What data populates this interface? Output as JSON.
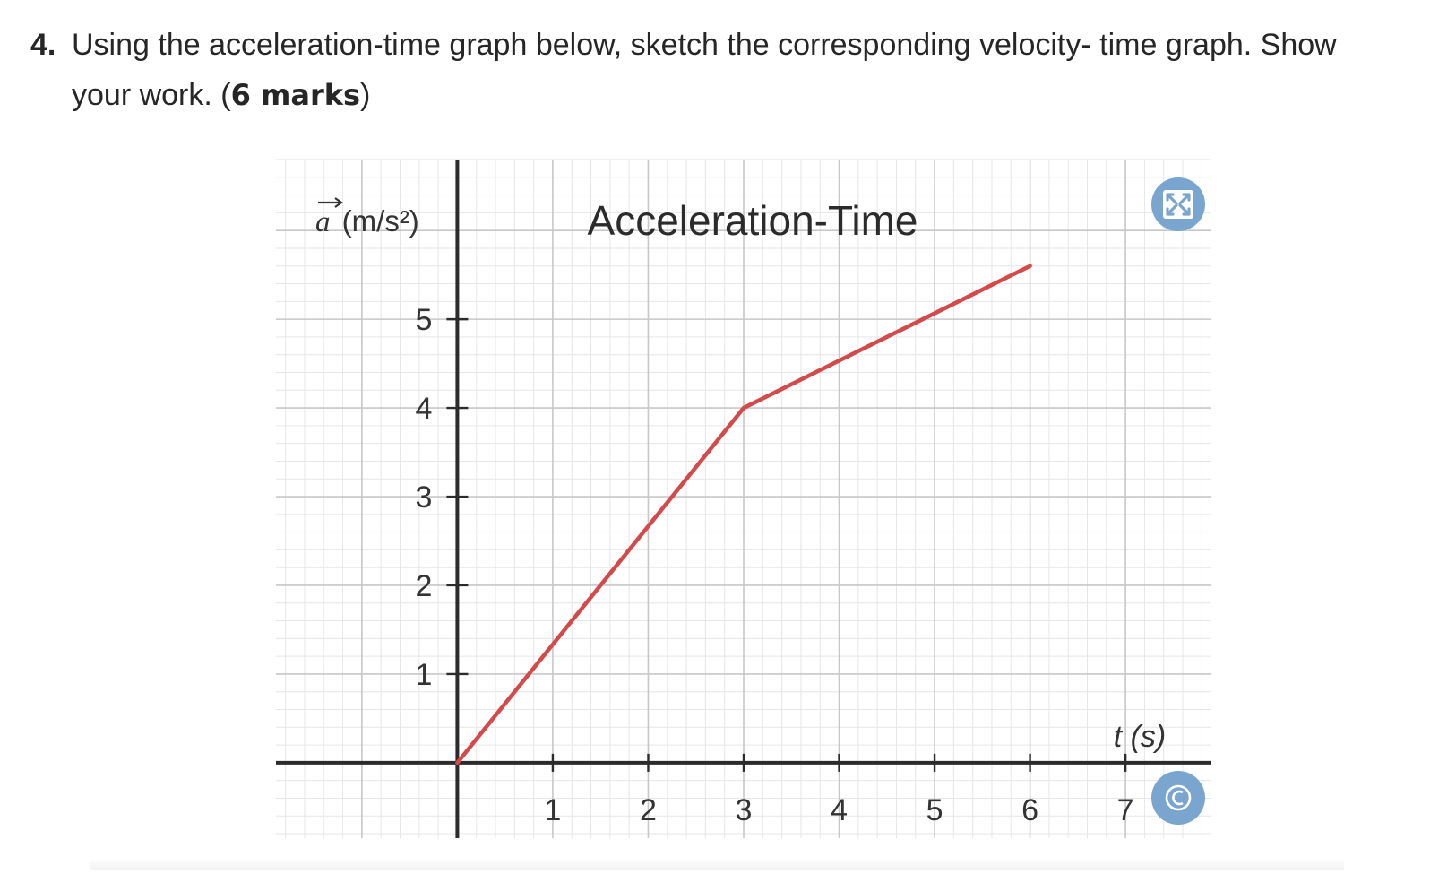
{
  "question": {
    "number": "4.",
    "text_line1": "Using the acceleration-time graph below, sketch the corresponding velocity- time graph. Show",
    "text_line2_pre": "your work. (",
    "marks": "6 marks",
    "text_line2_post": ")"
  },
  "chart_data": {
    "type": "line",
    "title": "Acceleration-Time",
    "ylabel_symbol": "a",
    "ylabel_units": "(m/s²)",
    "xlabel": "t (s)",
    "xlim": [
      -1.9,
      7.9
    ],
    "ylim": [
      -0.85,
      6.8
    ],
    "x_ticks": [
      1,
      2,
      3,
      4,
      5,
      6,
      7
    ],
    "y_ticks": [
      1,
      2,
      3,
      4,
      5
    ],
    "x_tick_labels": [
      "1",
      "2",
      "3",
      "4",
      "5",
      "6",
      "7"
    ],
    "y_tick_labels": [
      "1",
      "2",
      "3",
      "4",
      "5"
    ],
    "grid": true,
    "series": [
      {
        "x": [
          0,
          3,
          6
        ],
        "y": [
          0,
          4,
          5.6
        ],
        "color": "#d24a4a"
      }
    ]
  },
  "colors": {
    "series": "#d24a4a",
    "axis": "#2b2b2b",
    "grid_major": "#c7c7c7",
    "grid_minor": "#e6e6e6",
    "badge": "#7aa5cf"
  },
  "icons": {
    "expand": "expand-arrows-icon",
    "copyright": "copyright-icon"
  }
}
